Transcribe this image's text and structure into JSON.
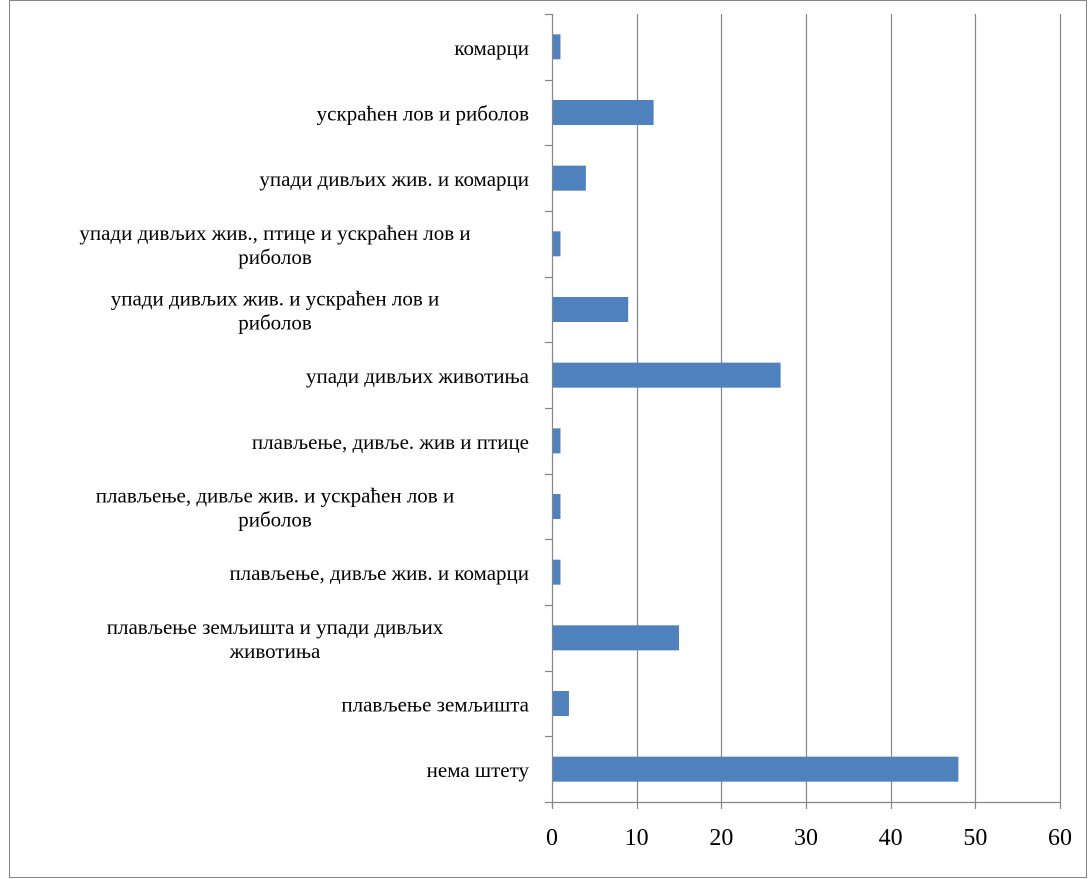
{
  "chart_data": {
    "type": "bar",
    "orientation": "horizontal",
    "categories": [
      "комарци",
      "ускраћен лов и риболов",
      "упади дивљих жив. и комарци",
      "упади дивљих жив., птице и ускраћен лов и риболов",
      "упади дивљих жив. и ускраћен лов и риболов",
      "упади дивљих животиња",
      "плављење, дивље. жив и птице",
      "плављење, дивље жив. и ускраћен лов и риболов",
      "плављење, дивље жив. и комарци",
      "плављење земљишта и упади дивљих животиња",
      "плављење земљишта",
      "нема штету"
    ],
    "category_lines": [
      [
        "комарци"
      ],
      [
        "ускраћен лов и риболов"
      ],
      [
        "упади дивљих жив. и комарци"
      ],
      [
        "упади дивљих жив., птице и ускраћен лов и",
        "риболов"
      ],
      [
        "упади дивљих жив. и ускраћен лов и",
        "риболов"
      ],
      [
        "упади дивљих животиња"
      ],
      [
        "плављење, дивље. жив и птице"
      ],
      [
        "плављење, дивље жив. и ускраћен лов и",
        "риболов"
      ],
      [
        "плављење, дивље жив. и комарци"
      ],
      [
        "плављење земљишта и упади дивљих",
        "животиња"
      ],
      [
        "плављење земљишта"
      ],
      [
        "нема штету"
      ]
    ],
    "values": [
      1,
      12,
      4,
      1,
      9,
      27,
      1,
      1,
      1,
      15,
      2,
      48
    ],
    "xlim": [
      0,
      60
    ],
    "xticks": [
      0,
      10,
      20,
      30,
      40,
      50,
      60
    ],
    "grid": true,
    "legend": "none",
    "title": "",
    "xlabel": "",
    "ylabel": "",
    "colors": {
      "bar": "#4f81bd",
      "grid": "#868686",
      "axis": "#868686",
      "frame": "#868686"
    }
  }
}
